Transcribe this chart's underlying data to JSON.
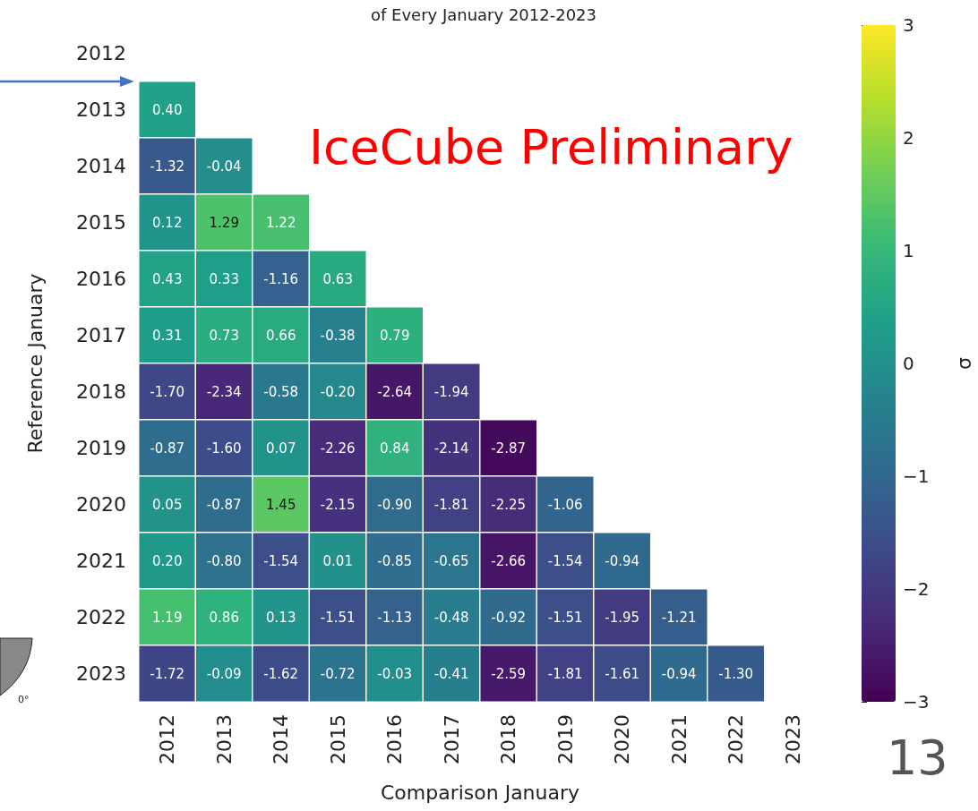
{
  "chart_data": {
    "type": "heatmap",
    "title": "of Every January 2012-2023",
    "xlabel": "Comparison January",
    "ylabel": "Reference January",
    "clabel": "σ",
    "categories": [
      "2012",
      "2013",
      "2014",
      "2015",
      "2016",
      "2017",
      "2018",
      "2019",
      "2020",
      "2021",
      "2022",
      "2023"
    ],
    "y_categories": [
      "2012",
      "2013",
      "2014",
      "2015",
      "2016",
      "2017",
      "2018",
      "2019",
      "2020",
      "2021",
      "2022",
      "2023"
    ],
    "cells": [
      [
        null,
        null,
        null,
        null,
        null,
        null,
        null,
        null,
        null,
        null,
        null,
        null
      ],
      [
        0.4,
        null,
        null,
        null,
        null,
        null,
        null,
        null,
        null,
        null,
        null,
        null
      ],
      [
        -1.32,
        -0.04,
        null,
        null,
        null,
        null,
        null,
        null,
        null,
        null,
        null,
        null
      ],
      [
        0.12,
        1.29,
        1.22,
        null,
        null,
        null,
        null,
        null,
        null,
        null,
        null,
        null
      ],
      [
        0.43,
        0.33,
        -1.16,
        0.63,
        null,
        null,
        null,
        null,
        null,
        null,
        null,
        null
      ],
      [
        0.31,
        0.73,
        0.66,
        -0.38,
        0.79,
        null,
        null,
        null,
        null,
        null,
        null,
        null
      ],
      [
        -1.7,
        -2.34,
        -0.58,
        -0.2,
        -2.64,
        -1.94,
        null,
        null,
        null,
        null,
        null,
        null
      ],
      [
        -0.87,
        -1.6,
        0.07,
        -2.26,
        0.84,
        -2.14,
        -2.87,
        null,
        null,
        null,
        null,
        null
      ],
      [
        0.05,
        -0.87,
        1.45,
        -2.15,
        -0.9,
        -1.81,
        -2.25,
        -1.06,
        null,
        null,
        null,
        null
      ],
      [
        0.2,
        -0.8,
        -1.54,
        0.01,
        -0.85,
        -0.65,
        -2.66,
        -1.54,
        -0.94,
        null,
        null,
        null
      ],
      [
        1.19,
        0.86,
        0.13,
        -1.51,
        -1.13,
        -0.48,
        -0.92,
        -1.51,
        -1.95,
        -1.21,
        null,
        null
      ],
      [
        -1.72,
        -0.09,
        -1.62,
        -0.72,
        -0.03,
        -0.41,
        -2.59,
        -1.81,
        -1.61,
        -0.94,
        -1.3,
        null
      ]
    ],
    "cell_labels": [
      [
        null,
        null,
        null,
        null,
        null,
        null,
        null,
        null,
        null,
        null,
        null,
        null
      ],
      [
        "0.40",
        null,
        null,
        null,
        null,
        null,
        null,
        null,
        null,
        null,
        null,
        null
      ],
      [
        "-1.32",
        "-0.04",
        null,
        null,
        null,
        null,
        null,
        null,
        null,
        null,
        null,
        null
      ],
      [
        "0.12",
        "1.29",
        "1.22",
        null,
        null,
        null,
        null,
        null,
        null,
        null,
        null,
        null
      ],
      [
        "0.43",
        "0.33",
        "-1.16",
        "0.63",
        null,
        null,
        null,
        null,
        null,
        null,
        null,
        null
      ],
      [
        "0.31",
        "0.73",
        "0.66",
        "-0.38",
        "0.79",
        null,
        null,
        null,
        null,
        null,
        null,
        null
      ],
      [
        "-1.70",
        "-2.34",
        "-0.58",
        "-0.20",
        "-2.64",
        "-1.94",
        null,
        null,
        null,
        null,
        null,
        null
      ],
      [
        "-0.87",
        "-1.60",
        "0.07",
        "-2.26",
        "0.84",
        "-2.14",
        "-2.87",
        null,
        null,
        null,
        null,
        null
      ],
      [
        "0.05",
        "-0.87",
        "1.45",
        "-2.15",
        "-0.90",
        "-1.81",
        "-2.25",
        "-1.06",
        null,
        null,
        null,
        null
      ],
      [
        "0.20",
        "-0.80",
        "-1.54",
        "0.01",
        "-0.85",
        "-0.65",
        "-2.66",
        "-1.54",
        "-0.94",
        null,
        null,
        null
      ],
      [
        "1.19",
        "0.86",
        "0.13",
        "-1.51",
        "-1.13",
        "-0.48",
        "-0.92",
        "-1.51",
        "-1.95",
        "-1.21",
        null,
        null
      ],
      [
        "-1.72",
        "-0.09",
        "-1.62",
        "-0.72",
        "-0.03",
        "-0.41",
        "-2.59",
        "-1.81",
        "-1.61",
        "-0.94",
        "-1.30",
        null
      ]
    ],
    "clim": [
      -3,
      3
    ],
    "cticks": [
      -3,
      -2,
      -1,
      0,
      1,
      2,
      3
    ],
    "annotations": [
      "IceCube Preliminary",
      "13",
      "0°"
    ]
  }
}
